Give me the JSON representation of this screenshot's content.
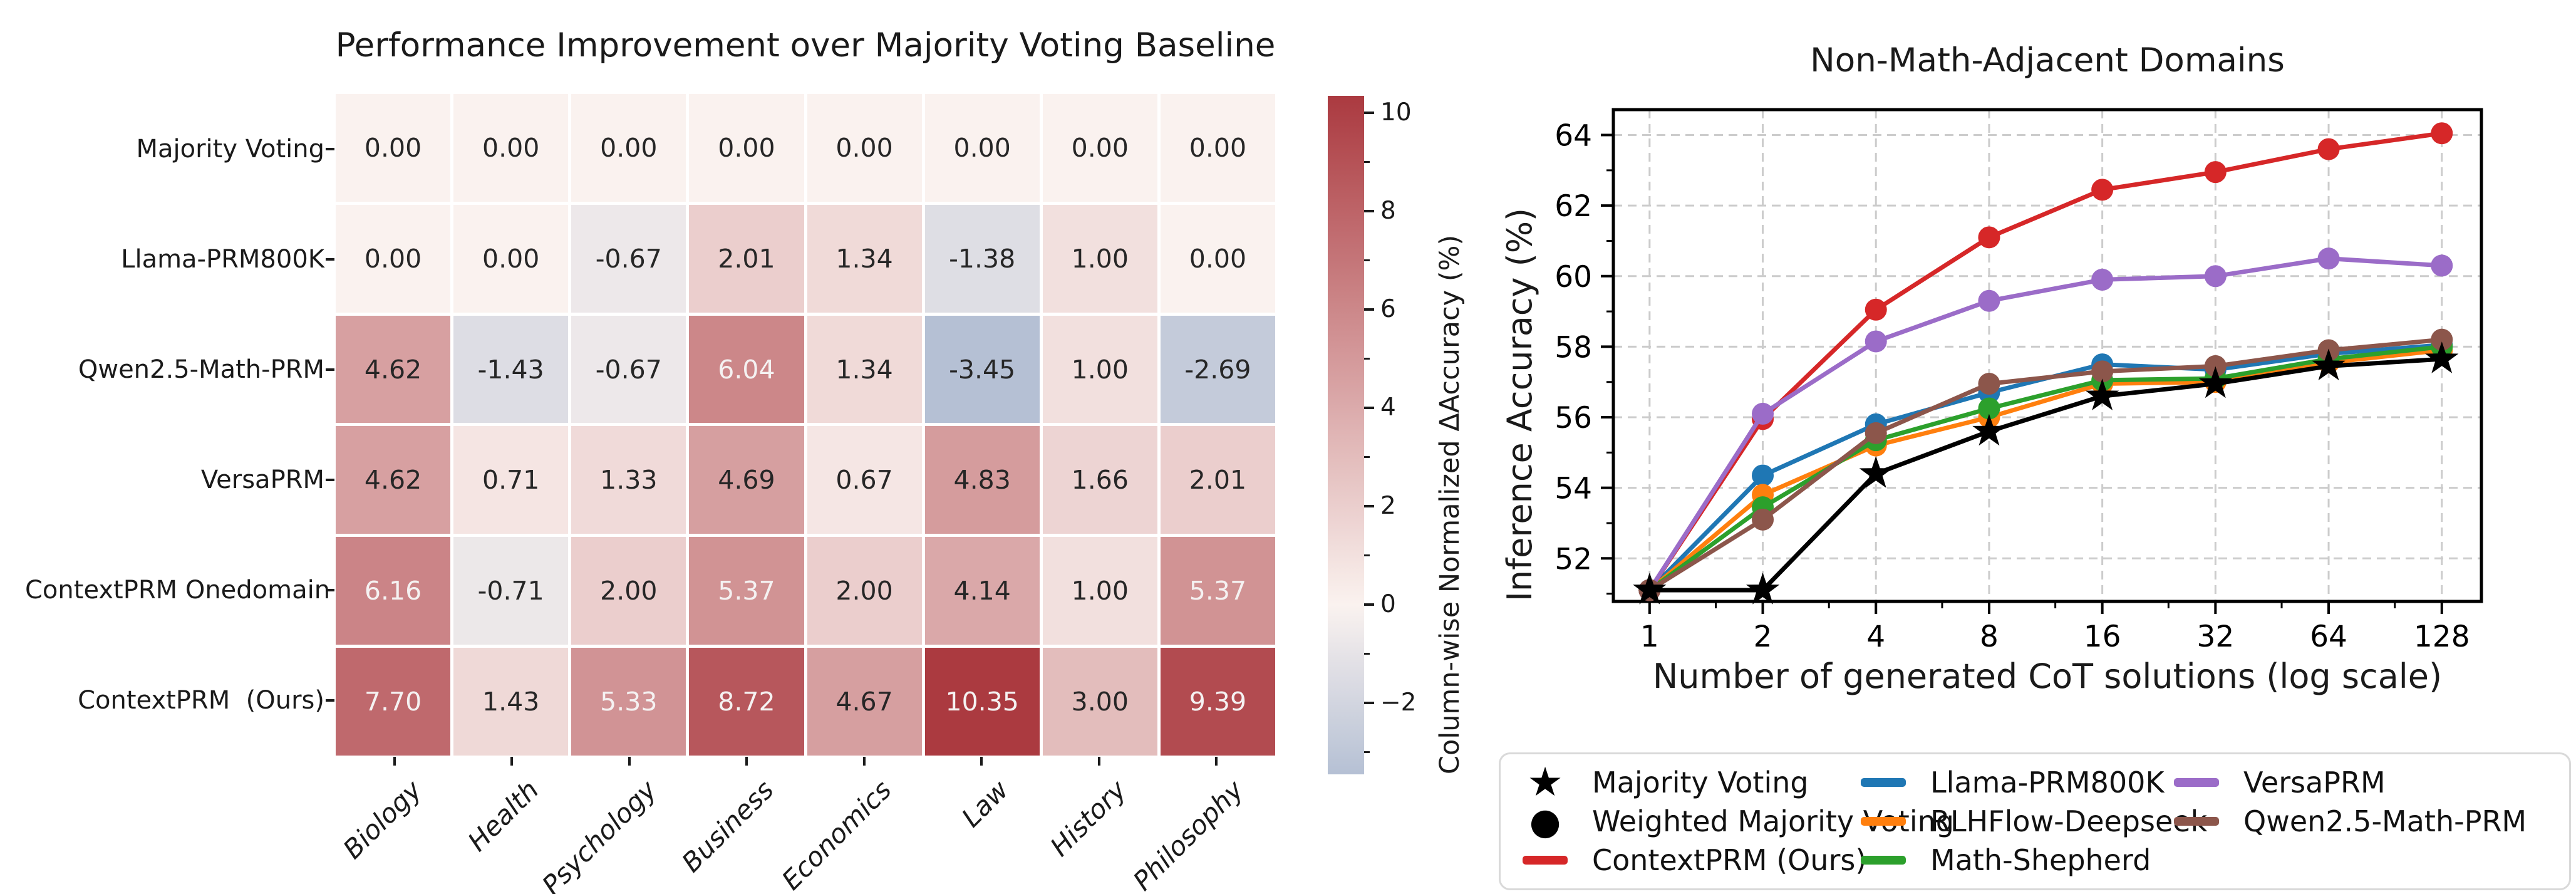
{
  "chart_data": [
    {
      "type": "heatmap",
      "title": "Performance Improvement over Majority Voting Baseline",
      "rows": [
        "Majority Voting",
        "Llama-PRM800K",
        "Qwen2.5-Math-PRM",
        "VersaPRM",
        "ContextPRM Onedomain",
        "ContextPRM  (Ours)"
      ],
      "columns": [
        "Biology",
        "Health",
        "Psychology",
        "Business",
        "Economics",
        "Law",
        "History",
        "Philosophy"
      ],
      "values": [
        [
          0.0,
          0.0,
          0.0,
          0.0,
          0.0,
          0.0,
          0.0,
          0.0
        ],
        [
          0.0,
          0.0,
          -0.67,
          2.01,
          1.34,
          -1.38,
          1.0,
          0.0
        ],
        [
          4.62,
          -1.43,
          -0.67,
          6.04,
          1.34,
          -3.45,
          1.0,
          -2.69
        ],
        [
          4.62,
          0.71,
          1.33,
          4.69,
          0.67,
          4.83,
          1.66,
          2.01
        ],
        [
          6.16,
          -0.71,
          2.0,
          5.37,
          2.0,
          4.14,
          1.0,
          5.37
        ],
        [
          7.7,
          1.43,
          5.33,
          8.72,
          4.67,
          10.35,
          3.0,
          9.39
        ]
      ],
      "colorbar": {
        "label": "Column-wise Normalized ΔAccuracy (%)",
        "major_ticks": [
          10,
          8,
          6,
          4,
          2,
          0,
          -2
        ],
        "minor_ticks": [
          9,
          7,
          5,
          3,
          1,
          -1,
          -3
        ],
        "display_min": -3.45,
        "display_max": 10.35,
        "scale_abs_max": 10.35,
        "color_positive": "#ab3a40",
        "color_negative": "#2b5d9e",
        "color_mid": "#faf2ef",
        "white_text_threshold": 5.0
      }
    },
    {
      "type": "line",
      "title": "Non-Math-Adjacent Domains",
      "xlabel": "Number of generated CoT solutions (log scale)",
      "ylabel": "Inference Accuracy (%)",
      "x": [
        1,
        2,
        4,
        8,
        16,
        32,
        64,
        128
      ],
      "xscale": "log2",
      "yticks": [
        52,
        54,
        56,
        58,
        60,
        62,
        64
      ],
      "y_minor_ticks": [
        51,
        53,
        55,
        57,
        59,
        61,
        63
      ],
      "x_minor_ticks": [
        1.5,
        3,
        6,
        12,
        24,
        48,
        96
      ],
      "ylim": [
        50.78,
        64.72
      ],
      "grid": "dashed",
      "legend_position": "below",
      "series": [
        {
          "name": "Majority Voting",
          "color": "#000000",
          "marker": "star",
          "values": [
            51.1,
            51.1,
            54.4,
            55.6,
            56.6,
            56.95,
            57.45,
            57.65
          ]
        },
        {
          "name": "ContextPRM (Ours)",
          "color": "#d62728",
          "marker": "circle",
          "values": [
            51.1,
            55.95,
            59.05,
            61.1,
            62.45,
            62.95,
            63.6,
            64.05
          ]
        },
        {
          "name": "VersaPRM",
          "color": "#9b6cc8",
          "marker": "circle",
          "values": [
            51.1,
            56.1,
            58.15,
            59.3,
            59.9,
            60.0,
            60.5,
            60.3
          ]
        },
        {
          "name": "Llama-PRM800K",
          "color": "#1f77b4",
          "marker": "circle",
          "values": [
            51.1,
            54.35,
            55.8,
            56.7,
            57.5,
            57.35,
            57.8,
            58.05
          ]
        },
        {
          "name": "RLHFlow-Deepseek",
          "color": "#ff7f0e",
          "marker": "circle",
          "values": [
            51.1,
            53.8,
            55.2,
            56.0,
            56.95,
            57.0,
            57.55,
            57.9
          ]
        },
        {
          "name": "Math-Shepherd",
          "color": "#2ca02c",
          "marker": "circle",
          "values": [
            51.1,
            53.45,
            55.35,
            56.25,
            57.05,
            57.1,
            57.65,
            58.0
          ]
        },
        {
          "name": "Qwen2.5-Math-PRM",
          "color": "#8c564b",
          "marker": "circle",
          "values": [
            51.1,
            53.1,
            55.55,
            56.95,
            57.3,
            57.45,
            57.9,
            58.2
          ]
        }
      ],
      "draw_order": [
        "Llama-PRM800K",
        "RLHFlow-Deepseek",
        "Math-Shepherd",
        "ContextPRM (Ours)",
        "VersaPRM",
        "Qwen2.5-Math-PRM",
        "Majority Voting"
      ],
      "legend": {
        "entries": [
          {
            "label": "Majority Voting",
            "handle": "star",
            "color": "#000000"
          },
          {
            "label": "Weighted Majority Voting",
            "handle": "circle",
            "color": "#000000"
          },
          {
            "label": "ContextPRM (Ours)",
            "handle": "line",
            "color": "#d62728"
          },
          {
            "label": "Llama-PRM800K",
            "handle": "line",
            "color": "#1f77b4"
          },
          {
            "label": "RLHFlow-Deepseek",
            "handle": "line",
            "color": "#ff7f0e"
          },
          {
            "label": "Math-Shepherd",
            "handle": "line",
            "color": "#2ca02c"
          },
          {
            "label": "VersaPRM",
            "handle": "line",
            "color": "#9b6cc8"
          },
          {
            "label": "Qwen2.5-Math-PRM",
            "handle": "line",
            "color": "#8c564b"
          }
        ]
      }
    }
  ]
}
